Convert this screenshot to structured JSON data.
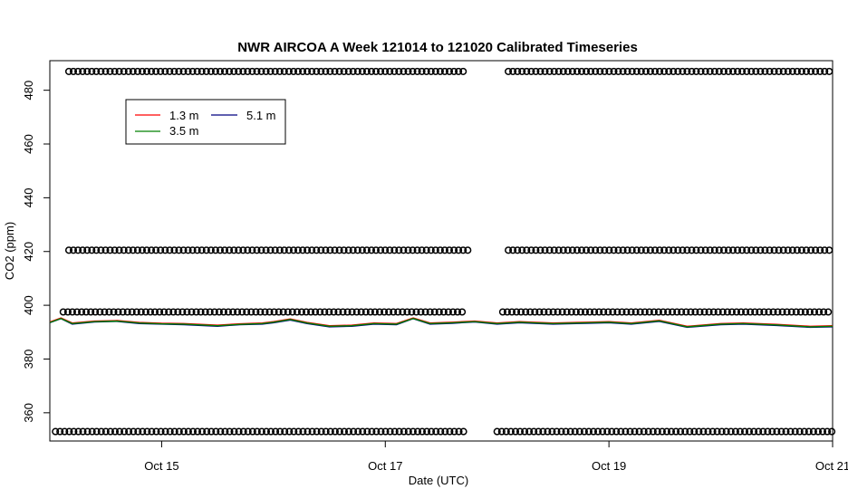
{
  "chart_data": {
    "type": "line",
    "title": "NWR AIRCOA A  Week 121014 to 121020  Calibrated Timeseries",
    "xlabel": "Date (UTC)",
    "ylabel": "CO2 (ppm)",
    "x_unit": "days (October 2012)",
    "xlim": [
      14.0,
      21.0
    ],
    "ylim": [
      349.5,
      491
    ],
    "xticks": [
      {
        "value": 15,
        "label": "Oct 15"
      },
      {
        "value": 17,
        "label": "Oct 17"
      },
      {
        "value": 19,
        "label": "Oct 19"
      },
      {
        "value": 21,
        "label": "Oct 21"
      }
    ],
    "yticks": [
      360,
      380,
      400,
      420,
      440,
      460,
      480
    ],
    "grid": false,
    "legend": {
      "placement": "top-left",
      "entries": [
        {
          "label": "1.3 m",
          "color": "#ff0000"
        },
        {
          "label": "5.1 m",
          "color": "#000080"
        },
        {
          "label": "3.5 m",
          "color": "#008000"
        }
      ]
    },
    "series": [
      {
        "name": "5.1 m",
        "color": "#000080",
        "x": [
          14.0,
          14.1,
          14.2,
          14.4,
          14.6,
          14.8,
          15.0,
          15.2,
          15.5,
          15.7,
          15.9,
          16.0,
          16.15,
          16.3,
          16.5,
          16.7,
          16.9,
          17.1,
          17.25,
          17.4,
          17.6,
          17.8,
          18.0,
          18.2,
          18.5,
          18.8,
          19.0,
          19.2,
          19.45,
          19.7,
          20.0,
          20.2,
          20.5,
          20.8,
          21.0
        ],
        "y": [
          393.5,
          395.0,
          393.0,
          393.8,
          394.0,
          393.2,
          393.0,
          392.8,
          392.2,
          392.8,
          393.0,
          393.5,
          394.5,
          393.2,
          392.0,
          392.2,
          393.0,
          392.8,
          395.0,
          393.0,
          393.3,
          393.8,
          393.0,
          393.5,
          393.0,
          393.3,
          393.5,
          393.0,
          394.0,
          391.8,
          392.8,
          393.0,
          392.5,
          391.8,
          392.0
        ]
      },
      {
        "name": "1.3 m",
        "color": "#ff0000",
        "x": [
          14.0,
          14.1,
          14.2,
          14.4,
          14.6,
          14.8,
          15.0,
          15.2,
          15.5,
          15.7,
          15.9,
          16.0,
          16.15,
          16.3,
          16.5,
          16.7,
          16.9,
          17.1,
          17.25,
          17.4,
          17.6,
          17.8,
          18.0,
          18.2,
          18.5,
          18.8,
          19.0,
          19.2,
          19.45,
          19.7,
          20.0,
          20.2,
          20.5,
          20.8,
          21.0
        ],
        "y": [
          393.8,
          395.3,
          393.4,
          394.1,
          394.3,
          393.6,
          393.3,
          393.2,
          392.6,
          393.1,
          393.4,
          393.9,
          394.9,
          393.6,
          392.4,
          392.6,
          393.4,
          393.2,
          395.3,
          393.4,
          393.7,
          394.1,
          393.4,
          393.9,
          393.4,
          393.7,
          393.9,
          393.4,
          394.4,
          392.2,
          393.2,
          393.4,
          392.9,
          392.2,
          392.4
        ]
      },
      {
        "name": "3.5 m",
        "color": "#008000",
        "x": [
          14.0,
          14.1,
          14.2,
          14.4,
          14.6,
          14.8,
          15.0,
          15.2,
          15.5,
          15.7,
          15.9,
          16.0,
          16.15,
          16.3,
          16.5,
          16.7,
          16.9,
          17.1,
          17.25,
          17.4,
          17.6,
          17.8,
          18.0,
          18.2,
          18.5,
          18.8,
          19.0,
          19.2,
          19.45,
          19.7,
          20.0,
          20.2,
          20.5,
          20.8,
          21.0
        ],
        "y": [
          393.6,
          395.1,
          393.2,
          393.9,
          394.1,
          393.4,
          393.1,
          393.0,
          392.4,
          392.9,
          393.2,
          393.7,
          394.7,
          393.4,
          392.2,
          392.4,
          393.2,
          393.0,
          395.1,
          393.2,
          393.5,
          393.9,
          393.2,
          393.7,
          393.2,
          393.5,
          393.7,
          393.2,
          394.2,
          392.0,
          393.0,
          393.2,
          392.7,
          392.0,
          392.2
        ]
      }
    ],
    "marker_rows": [
      {
        "y": 487,
        "x_ranges": [
          [
            14.17,
            17.7
          ],
          [
            18.1,
            21.0
          ]
        ],
        "spacing_days": 0.041
      },
      {
        "y": 420.5,
        "x_ranges": [
          [
            14.17,
            17.75
          ],
          [
            18.1,
            21.0
          ]
        ],
        "spacing_days": 0.041
      },
      {
        "y": 397.5,
        "x_ranges": [
          [
            14.12,
            17.72
          ],
          [
            18.05,
            21.0
          ]
        ],
        "spacing_days": 0.041
      },
      {
        "y": 353,
        "x_ranges": [
          [
            14.05,
            17.7
          ],
          [
            18.0,
            21.0
          ]
        ],
        "spacing_days": 0.041
      }
    ]
  }
}
